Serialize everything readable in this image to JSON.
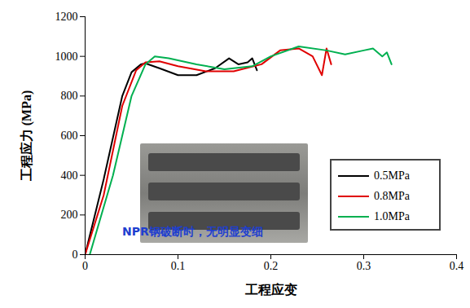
{
  "chart_data": {
    "type": "line",
    "xlabel": "工程应变",
    "ylabel": "工程应力 (MPa)",
    "xlim": [
      0,
      0.4
    ],
    "xticks": [
      0,
      0.1,
      0.2,
      0.3,
      0.4
    ],
    "ylim": [
      0,
      1200
    ],
    "yticks": [
      0,
      200,
      400,
      600,
      800,
      1000,
      1200
    ],
    "legend": "lower right",
    "annotation": "NPR钢破断时，无明显变细",
    "series": [
      {
        "name": "0.5MPa",
        "color": "#000000",
        "x": [
          0,
          0.02,
          0.04,
          0.05,
          0.06,
          0.065,
          0.08,
          0.1,
          0.12,
          0.14,
          0.155,
          0.165,
          0.175,
          0.18,
          0.185
        ],
        "values": [
          0,
          380,
          800,
          920,
          960,
          965,
          940,
          905,
          905,
          940,
          990,
          960,
          970,
          990,
          930
        ]
      },
      {
        "name": "0.8MPa",
        "color": "#e00000",
        "x": [
          0,
          0.02,
          0.04,
          0.055,
          0.065,
          0.08,
          0.1,
          0.13,
          0.16,
          0.19,
          0.21,
          0.23,
          0.245,
          0.255,
          0.26,
          0.265
        ],
        "values": [
          0,
          300,
          750,
          930,
          970,
          975,
          950,
          925,
          925,
          960,
          1030,
          1040,
          1000,
          905,
          1040,
          960
        ]
      },
      {
        "name": "1.0MPa",
        "color": "#00b050",
        "x": [
          0.005,
          0.03,
          0.05,
          0.065,
          0.075,
          0.09,
          0.12,
          0.15,
          0.18,
          0.2,
          0.23,
          0.26,
          0.28,
          0.3,
          0.31,
          0.32,
          0.325,
          0.33
        ],
        "values": [
          0,
          400,
          800,
          960,
          1000,
          990,
          960,
          935,
          950,
          1000,
          1050,
          1030,
          1010,
          1030,
          1040,
          1000,
          1020,
          960
        ]
      }
    ]
  }
}
